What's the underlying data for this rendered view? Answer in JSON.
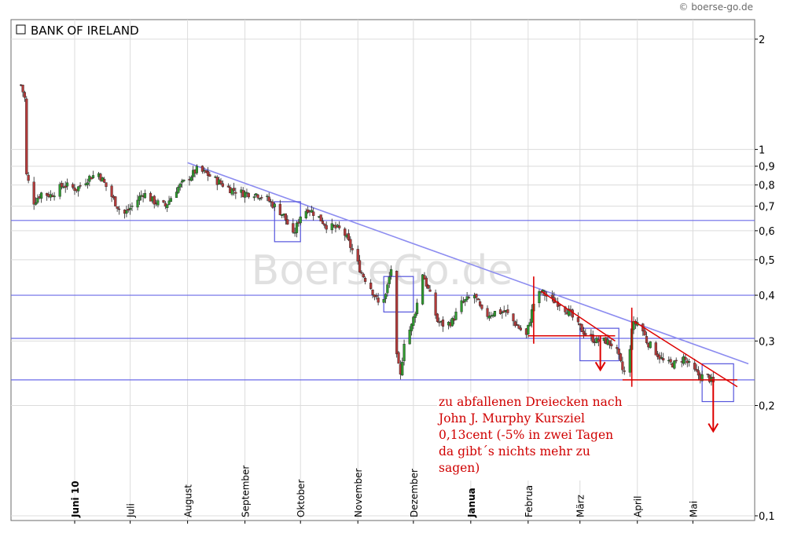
{
  "copyright": "© boerse-go.de",
  "watermark": "BoerseGo.de",
  "annotation": "zu abfallenen Dreiecken nach John J. Murphy Kursziel 0,13cent (-5% in zwei Tagen da gibt´s nichts mehr zu sagen)",
  "colors": {
    "trend_line": "#8c8cf0",
    "support_line": "#6a6ae8",
    "box": "#5555dd",
    "annotation_red": "#dd0000",
    "candle_up": "#2f9a2f",
    "candle_down": "#b33a3a",
    "grid": "#dcdcdc"
  },
  "chart_data": {
    "type": "candlestick",
    "title": "BANK OF IRELAND",
    "y_scale": "log",
    "ylim": [
      0.1,
      2.1
    ],
    "y_ticks": [
      {
        "value": 2,
        "label": "2"
      },
      {
        "value": 1,
        "label": "1"
      },
      {
        "value": 0.9,
        "label": "0,9"
      },
      {
        "value": 0.8,
        "label": "0,8"
      },
      {
        "value": 0.7,
        "label": "0,7"
      },
      {
        "value": 0.6,
        "label": "0,6"
      },
      {
        "value": 0.5,
        "label": "0,5"
      },
      {
        "value": 0.4,
        "label": "0,4"
      },
      {
        "value": 0.3,
        "label": "0,3"
      },
      {
        "value": 0.2,
        "label": "0,2"
      },
      {
        "value": 0.1,
        "label": "0,1"
      }
    ],
    "x_range": [
      "2010-05-01",
      "2011-05-31"
    ],
    "x_ticks": [
      {
        "date": "2010-06-01",
        "label": "Juni 10",
        "bold": true
      },
      {
        "date": "2010-07-01",
        "label": "Juli",
        "bold": false
      },
      {
        "date": "2010-08-01",
        "label": "August",
        "bold": false
      },
      {
        "date": "2010-09-01",
        "label": "September",
        "bold": false
      },
      {
        "date": "2010-10-01",
        "label": "Oktober",
        "bold": false
      },
      {
        "date": "2010-11-01",
        "label": "November",
        "bold": false
      },
      {
        "date": "2010-12-01",
        "label": "Dezember",
        "bold": false
      },
      {
        "date": "2011-01-01",
        "label": "Janua",
        "bold": true
      },
      {
        "date": "2011-02-01",
        "label": "Februa",
        "bold": false
      },
      {
        "date": "2011-03-01",
        "label": "März",
        "bold": false
      },
      {
        "date": "2011-04-01",
        "label": "April",
        "bold": false
      },
      {
        "date": "2011-05-01",
        "label": "Mai",
        "bold": false
      }
    ],
    "price_path": [
      [
        "2010-05-03",
        1.5
      ],
      [
        "2010-05-05",
        1.38
      ],
      [
        "2010-05-06",
        0.85
      ],
      [
        "2010-05-10",
        0.72
      ],
      [
        "2010-05-14",
        0.76
      ],
      [
        "2010-05-19",
        0.75
      ],
      [
        "2010-05-26",
        0.8
      ],
      [
        "2010-06-02",
        0.78
      ],
      [
        "2010-06-09",
        0.84
      ],
      [
        "2010-06-14",
        0.86
      ],
      [
        "2010-06-20",
        0.76
      ],
      [
        "2010-06-27",
        0.66
      ],
      [
        "2010-07-02",
        0.7
      ],
      [
        "2010-07-08",
        0.76
      ],
      [
        "2010-07-14",
        0.72
      ],
      [
        "2010-07-20",
        0.7
      ],
      [
        "2010-07-26",
        0.78
      ],
      [
        "2010-08-02",
        0.84
      ],
      [
        "2010-08-06",
        0.88
      ],
      [
        "2010-08-11",
        0.86
      ],
      [
        "2010-08-17",
        0.82
      ],
      [
        "2010-08-24",
        0.78
      ],
      [
        "2010-08-31",
        0.76
      ],
      [
        "2010-09-06",
        0.76
      ],
      [
        "2010-09-12",
        0.74
      ],
      [
        "2010-09-17",
        0.7
      ],
      [
        "2010-09-22",
        0.66
      ],
      [
        "2010-09-27",
        0.58
      ],
      [
        "2010-10-01",
        0.66
      ],
      [
        "2010-10-05",
        0.69
      ],
      [
        "2010-10-10",
        0.66
      ],
      [
        "2010-10-15",
        0.62
      ],
      [
        "2010-10-20",
        0.61
      ],
      [
        "2010-10-24",
        0.6
      ],
      [
        "2010-10-29",
        0.53
      ],
      [
        "2010-11-03",
        0.46
      ],
      [
        "2010-11-08",
        0.42
      ],
      [
        "2010-11-12",
        0.38
      ],
      [
        "2010-11-16",
        0.4
      ],
      [
        "2010-11-20",
        0.5
      ],
      [
        "2010-11-22",
        0.27
      ],
      [
        "2010-11-24",
        0.24
      ],
      [
        "2010-11-26",
        0.3
      ],
      [
        "2010-11-30",
        0.33
      ],
      [
        "2010-12-03",
        0.38
      ],
      [
        "2010-12-06",
        0.46
      ],
      [
        "2010-12-10",
        0.4
      ],
      [
        "2010-12-14",
        0.34
      ],
      [
        "2010-12-18",
        0.33
      ],
      [
        "2010-12-22",
        0.34
      ],
      [
        "2010-12-27",
        0.38
      ],
      [
        "2011-01-03",
        0.4
      ],
      [
        "2011-01-08",
        0.35
      ],
      [
        "2011-01-14",
        0.36
      ],
      [
        "2011-01-20",
        0.36
      ],
      [
        "2011-01-26",
        0.33
      ],
      [
        "2011-01-31",
        0.31
      ],
      [
        "2011-02-04",
        0.38
      ],
      [
        "2011-02-08",
        0.41
      ],
      [
        "2011-02-13",
        0.39
      ],
      [
        "2011-02-18",
        0.38
      ],
      [
        "2011-02-23",
        0.36
      ],
      [
        "2011-02-28",
        0.33
      ],
      [
        "2011-03-05",
        0.31
      ],
      [
        "2011-03-10",
        0.3
      ],
      [
        "2011-03-15",
        0.3
      ],
      [
        "2011-03-20",
        0.29
      ],
      [
        "2011-03-24",
        0.25
      ],
      [
        "2011-03-27",
        0.24
      ],
      [
        "2011-03-29",
        0.33
      ],
      [
        "2011-04-02",
        0.34
      ],
      [
        "2011-04-06",
        0.3
      ],
      [
        "2011-04-11",
        0.28
      ],
      [
        "2011-04-16",
        0.26
      ],
      [
        "2011-04-21",
        0.26
      ],
      [
        "2011-04-26",
        0.27
      ],
      [
        "2011-05-01",
        0.25
      ],
      [
        "2011-05-05",
        0.24
      ],
      [
        "2011-05-09",
        0.24
      ],
      [
        "2011-05-12",
        0.23
      ]
    ],
    "horizontal_lines": [
      0.64,
      0.4,
      0.305,
      0.235
    ],
    "trend_lines": [
      {
        "from": [
          "2010-08-01",
          0.92
        ],
        "to": [
          "2011-05-31",
          0.26
        ],
        "color": "trend_line"
      }
    ],
    "red_lines": [
      {
        "from": [
          "2011-02-08",
          0.41
        ],
        "to": [
          "2011-03-20",
          0.3
        ]
      },
      {
        "from": [
          "2011-02-01",
          0.31
        ],
        "to": [
          "2011-03-20",
          0.31
        ]
      },
      {
        "from": [
          "2011-03-30",
          0.34
        ],
        "to": [
          "2011-05-25",
          0.225
        ]
      },
      {
        "from": [
          "2011-03-24",
          0.235
        ],
        "to": [
          "2011-05-25",
          0.235
        ]
      }
    ],
    "red_arrows": [
      {
        "date": "2011-03-12",
        "from": 0.31,
        "to": 0.25
      },
      {
        "date": "2011-05-12",
        "from": 0.235,
        "to": 0.17
      }
    ],
    "red_vertical_marks": [
      {
        "date": "2011-02-04",
        "from": 0.45,
        "to": 0.295
      },
      {
        "date": "2011-03-29",
        "from": 0.37,
        "to": 0.225
      }
    ],
    "boxes": [
      {
        "from": [
          "2010-09-17",
          0.72
        ],
        "to": [
          "2010-10-01",
          0.56
        ]
      },
      {
        "from": [
          "2010-11-15",
          0.45
        ],
        "to": [
          "2010-12-01",
          0.36
        ]
      },
      {
        "from": [
          "2011-03-01",
          0.325
        ],
        "to": [
          "2011-03-22",
          0.265
        ]
      },
      {
        "from": [
          "2011-05-06",
          0.26
        ],
        "to": [
          "2011-05-23",
          0.205
        ]
      }
    ]
  }
}
